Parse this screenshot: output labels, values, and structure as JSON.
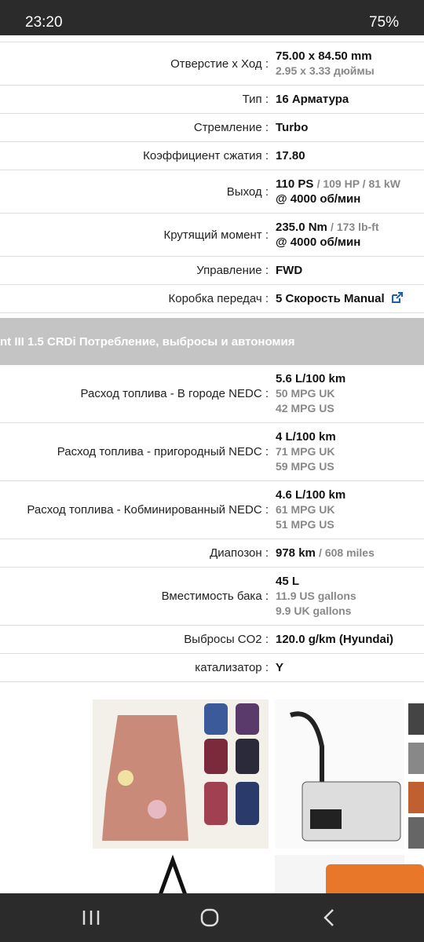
{
  "status_bar": {
    "time": "23:20",
    "battery": "75%"
  },
  "specs_top": [
    {
      "label": "Отверстие x Ход :",
      "value": "75.00 x 84.50 mm",
      "lines": [
        "2.95 x 3.33 дюймы"
      ]
    },
    {
      "label": "Тип :",
      "value": "16 Арматура"
    },
    {
      "label": "Стремление :",
      "value": "Turbo"
    },
    {
      "label": "Коэффициент сжатия :",
      "value": "17.80"
    },
    {
      "label": "Выход :",
      "value": "110 PS",
      "inline": "/ 109 HP / 81 kW",
      "second": "@ 4000 об/мин"
    },
    {
      "label": "Крутящий момент :",
      "value": "235.0 Nm",
      "inline": "/ 173 lb-ft",
      "second": "@ 4000 об/мин"
    },
    {
      "label": "Управление :",
      "value": "FWD"
    },
    {
      "label": "Коробка передач :",
      "value": "5 Скорость Manual",
      "link": true
    }
  ],
  "section_title": "nt III 1.5 CRDi Потребление, выбросы и автономия",
  "specs_bottom": [
    {
      "label": "Расход топлива - В городе NEDC :",
      "value": "5.6 L/100 km",
      "lines": [
        "50 MPG UK",
        "42 MPG US"
      ]
    },
    {
      "label": "Расход топлива - пригородный NEDC :",
      "value": "4 L/100 km",
      "lines": [
        "71 MPG UK",
        "59 MPG US"
      ]
    },
    {
      "label": "Расход топлива - Кобминированный NEDC :",
      "value": "4.6 L/100 km",
      "lines": [
        "61 MPG UK",
        "51 MPG US"
      ]
    },
    {
      "label": "Диапозон :",
      "value": "978 km",
      "inline": "/ 608 miles"
    },
    {
      "label": "Вместимость бака :",
      "value": "45 L",
      "lines": [
        "11.9 US gallons",
        "9.9 UK gallons"
      ]
    },
    {
      "label": "Выбросы CO2 :",
      "value": "120.0 g/km (Hyundai)"
    },
    {
      "label": "катализатор :",
      "value": "Y"
    }
  ]
}
